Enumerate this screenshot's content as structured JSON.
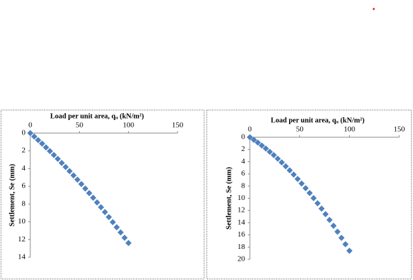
{
  "chart_data": [
    {
      "type": "scatter",
      "title": "Load per unit area, qᵤ (kN/m²)",
      "y_label": "Settlement, Se (mm)",
      "color": "#4f81bd",
      "x": [
        0,
        4,
        8,
        12,
        16,
        20,
        24,
        28,
        32,
        36,
        40,
        44,
        48,
        52,
        56,
        60,
        64,
        68,
        72,
        76,
        80,
        84,
        88,
        92,
        96,
        100
      ],
      "values": [
        0,
        0.39,
        0.79,
        1.19,
        1.61,
        2.03,
        2.47,
        2.91,
        3.36,
        3.82,
        4.29,
        4.77,
        5.25,
        5.75,
        6.25,
        6.77,
        7.29,
        7.82,
        8.36,
        8.91,
        9.47,
        10.04,
        10.62,
        11.2,
        11.8,
        12.4
      ],
      "xlim": [
        0,
        150
      ],
      "xticks": [
        0,
        50,
        100,
        150
      ],
      "ylim": [
        0,
        14
      ],
      "yticks": [
        0,
        2,
        4,
        6,
        8,
        10,
        12,
        14
      ]
    },
    {
      "type": "scatter",
      "title": "Load per unit area, qᵤ (kN/m²)",
      "y_label": "Settlement, Se (mm)",
      "color": "#4f81bd",
      "x": [
        0,
        4,
        8,
        12,
        16,
        20,
        24,
        28,
        32,
        36,
        40,
        44,
        48,
        52,
        56,
        60,
        64,
        68,
        72,
        76,
        80,
        84,
        88,
        92,
        96,
        100
      ],
      "values": [
        0,
        0.42,
        0.87,
        1.35,
        1.85,
        2.38,
        2.93,
        3.52,
        4.12,
        4.76,
        5.42,
        6.11,
        6.83,
        7.58,
        8.35,
        9.14,
        9.97,
        10.82,
        11.7,
        12.6,
        13.54,
        14.5,
        15.48,
        16.49,
        17.53,
        18.6
      ],
      "xlim": [
        0,
        150
      ],
      "xticks": [
        0,
        50,
        100,
        150
      ],
      "ylim": [
        0,
        20
      ],
      "yticks": [
        0,
        2,
        4,
        6,
        8,
        10,
        12,
        14,
        16,
        18,
        20
      ]
    }
  ]
}
